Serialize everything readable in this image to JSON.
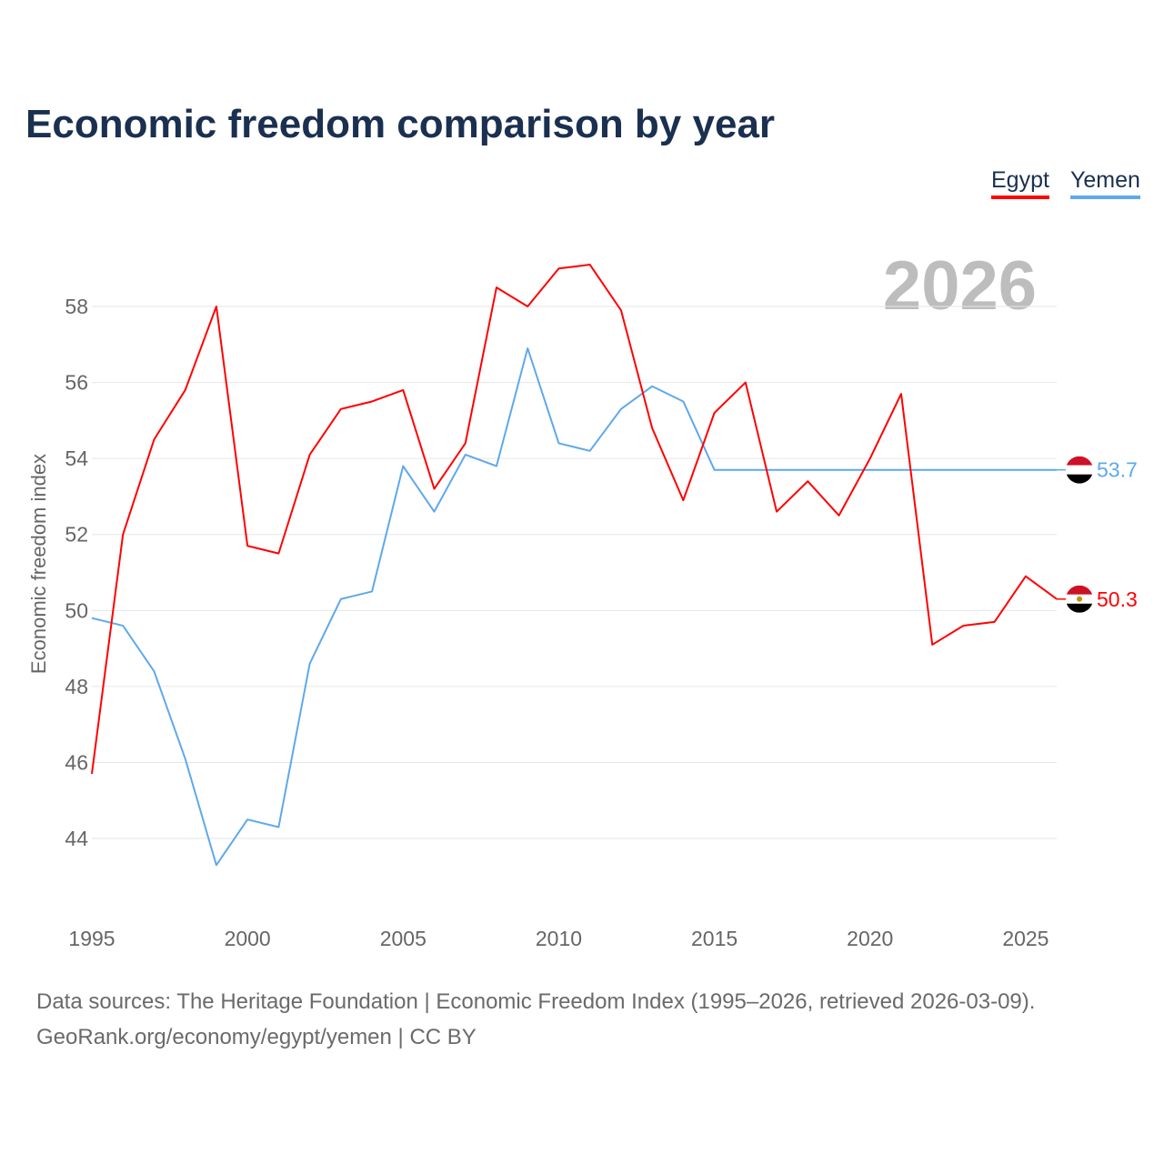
{
  "chart_data": {
    "type": "line",
    "title": "Economic freedom comparison by year",
    "xlabel": "",
    "ylabel": "Economic freedom index",
    "year_watermark": "2026",
    "xlim": [
      1995,
      2026
    ],
    "ylim": [
      42,
      60
    ],
    "x_ticks": [
      1995,
      2000,
      2005,
      2010,
      2015,
      2020,
      2025
    ],
    "y_ticks": [
      44,
      46,
      48,
      50,
      52,
      54,
      56,
      58
    ],
    "grid": true,
    "legend_position": "top-right",
    "x": [
      1995,
      1996,
      1997,
      1998,
      1999,
      2000,
      2001,
      2002,
      2003,
      2004,
      2005,
      2006,
      2007,
      2008,
      2009,
      2010,
      2011,
      2012,
      2013,
      2014,
      2015,
      2016,
      2017,
      2018,
      2019,
      2020,
      2021,
      2022,
      2023,
      2024,
      2025,
      2026
    ],
    "series": [
      {
        "name": "Egypt",
        "color": "#ff0000",
        "end_label": "50.3",
        "values": [
          45.7,
          52.0,
          54.5,
          55.8,
          58.0,
          51.7,
          51.5,
          54.1,
          55.3,
          55.5,
          55.8,
          53.2,
          54.4,
          58.5,
          58.0,
          59.0,
          59.1,
          57.9,
          54.8,
          52.9,
          55.2,
          56.0,
          52.6,
          53.4,
          52.5,
          54.0,
          55.7,
          49.1,
          49.6,
          49.7,
          50.9,
          50.3
        ]
      },
      {
        "name": "Yemen",
        "color": "#5fa8ec",
        "end_label": "53.7",
        "values": [
          49.8,
          49.6,
          48.4,
          46.1,
          43.3,
          44.5,
          44.3,
          48.6,
          50.3,
          50.5,
          53.8,
          52.6,
          54.1,
          53.8,
          56.9,
          54.4,
          54.2,
          55.3,
          55.9,
          55.5,
          53.7,
          53.7,
          53.7,
          53.7,
          53.7,
          53.7,
          53.7,
          53.7,
          53.7,
          53.7,
          53.7,
          53.7
        ]
      }
    ]
  },
  "footer": {
    "line1": "Data sources: The Heritage Foundation | Economic Freedom Index (1995–2026, retrieved 2026-03-09).",
    "line2": "GeoRank.org/economy/egypt/yemen | CC BY"
  }
}
